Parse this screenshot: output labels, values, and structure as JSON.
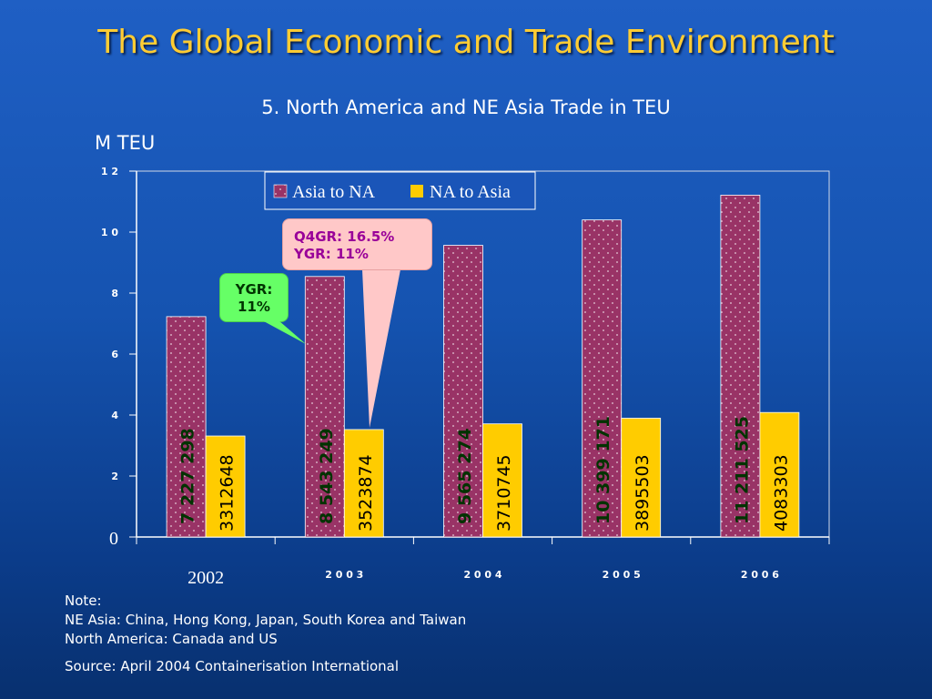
{
  "slide": {
    "title": "The Global Economic and Trade Environment",
    "subtitle": "5. North America and NE Asia Trade in TEU",
    "y_unit": "M TEU"
  },
  "notes": {
    "heading": "Note:",
    "line1": "NE Asia: China, Hong Kong, Japan, South Korea and Taiwan",
    "line2": "North America: Canada and US",
    "source": "Source: April 2004 Containerisation International"
  },
  "callouts": {
    "ygr": "YGR: 11%",
    "q4_line1": "Q4GR: 16.5%",
    "q4_line2": "YGR: 11%"
  },
  "colors": {
    "asia_to_na": "#993366",
    "na_to_asia": "#ffcc00",
    "asia_label": "#003300",
    "na_label": "#000000",
    "axis_text": "#ffffff",
    "callout_ygr": "#66ff66",
    "callout_q4": "#ffc8c8"
  },
  "chart_data": {
    "type": "bar",
    "categories": [
      "2002",
      "2 0 0 3",
      "2 0 0 4",
      "2 0 0 5",
      "2 0 0 6"
    ],
    "series": [
      {
        "name": "Asia to NA",
        "values": [
          7.227298,
          8.543249,
          9.565274,
          10.399171,
          11.211525
        ],
        "labels": [
          "7 227 298",
          "8 543 249",
          "9 565 274",
          "10 399 171",
          "11 211 525"
        ]
      },
      {
        "name": "NA to Asia",
        "values": [
          3.312648,
          3.523874,
          3.710745,
          3.895503,
          4.083303
        ],
        "labels": [
          "3312648",
          "3523874",
          "3710745",
          "3895503",
          "4083303"
        ]
      }
    ],
    "ylabel": "M TEU",
    "ylim": [
      0,
      12
    ],
    "yticks": [
      "0",
      "2",
      "4",
      "6",
      "8",
      "1 0",
      "1 2"
    ],
    "ytick_values": [
      0,
      2,
      4,
      6,
      8,
      10,
      12
    ],
    "legend_position": "top-right",
    "grid": false
  }
}
